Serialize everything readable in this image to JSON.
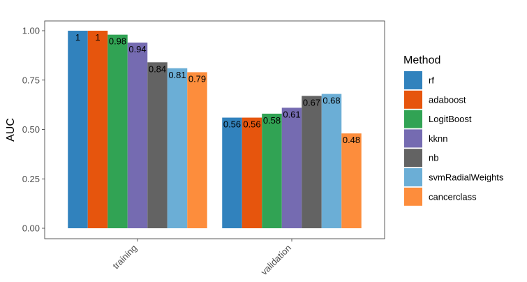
{
  "chart_data": {
    "type": "bar",
    "title": "",
    "xlabel": "",
    "ylabel": "AUC",
    "ylim": [
      0,
      1
    ],
    "yticks": [
      "0.00",
      "0.25",
      "0.50",
      "0.75",
      "1.00"
    ],
    "categories": [
      "training",
      "validation"
    ],
    "legend_title": "Method",
    "legend_position": "right",
    "grid": false,
    "series": [
      {
        "name": "rf",
        "color": "#3182bd",
        "values": [
          1,
          0.56
        ],
        "labels": [
          "1",
          "0.56"
        ]
      },
      {
        "name": "adaboost",
        "color": "#e6550d",
        "values": [
          1,
          0.56
        ],
        "labels": [
          "1",
          "0.56"
        ]
      },
      {
        "name": "LogitBoost",
        "color": "#31a354",
        "values": [
          0.98,
          0.58
        ],
        "labels": [
          "0.98",
          "0.58"
        ]
      },
      {
        "name": "kknn",
        "color": "#756bb1",
        "values": [
          0.94,
          0.61
        ],
        "labels": [
          "0.94",
          "0.61"
        ]
      },
      {
        "name": "nb",
        "color": "#636363",
        "values": [
          0.84,
          0.67
        ],
        "labels": [
          "0.84",
          "0.67"
        ]
      },
      {
        "name": "svmRadialWeights",
        "color": "#6baed6",
        "values": [
          0.81,
          0.68
        ],
        "labels": [
          "0.81",
          "0.68"
        ]
      },
      {
        "name": "cancerclass",
        "color": "#fd8d3c",
        "values": [
          0.79,
          0.48
        ],
        "labels": [
          "0.79",
          "0.48"
        ]
      }
    ]
  }
}
